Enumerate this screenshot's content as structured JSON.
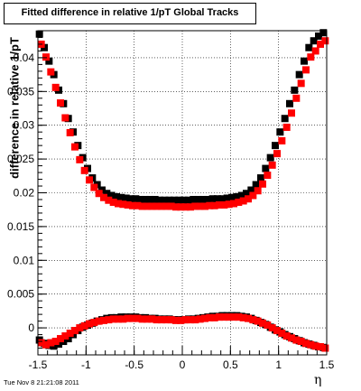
{
  "title": "Fitted difference in relative 1/pT  Global Tracks",
  "footer_timestamp": "Tue Nov  8 21:21:08 2011",
  "chart_data": {
    "type": "scatter",
    "title": "Fitted difference in relative 1/pT  Global Tracks",
    "xlabel": "η",
    "ylabel": "difference in relative 1/pT",
    "xlim": [
      -1.5,
      1.5
    ],
    "ylim": [
      -0.004,
      0.044
    ],
    "x_ticks": [
      -1.5,
      -1,
      -0.5,
      0,
      0.5,
      1,
      1.5
    ],
    "x_tick_labels": [
      "-1.5",
      "-1",
      "-0.5",
      "0",
      "0.5",
      "1",
      "1.5"
    ],
    "y_ticks": [
      0,
      0.005,
      0.01,
      0.015,
      0.02,
      0.025,
      0.03,
      0.035,
      0.04
    ],
    "y_tick_labels": [
      "0",
      "0.005",
      "0.01",
      "0.015",
      "0.02",
      "0.025",
      "0.03",
      "0.035",
      "0.04"
    ],
    "grid": true,
    "marker": "square",
    "x": [
      -1.475,
      -1.425,
      -1.375,
      -1.325,
      -1.275,
      -1.225,
      -1.175,
      -1.125,
      -1.075,
      -1.025,
      -0.975,
      -0.925,
      -0.875,
      -0.825,
      -0.775,
      -0.725,
      -0.675,
      -0.625,
      -0.575,
      -0.525,
      -0.475,
      -0.425,
      -0.375,
      -0.325,
      -0.275,
      -0.225,
      -0.175,
      -0.125,
      -0.075,
      -0.025,
      0.025,
      0.075,
      0.125,
      0.175,
      0.225,
      0.275,
      0.325,
      0.375,
      0.425,
      0.475,
      0.525,
      0.575,
      0.625,
      0.675,
      0.725,
      0.775,
      0.825,
      0.875,
      0.925,
      0.975,
      1.025,
      1.075,
      1.125,
      1.175,
      1.225,
      1.275,
      1.325,
      1.375,
      1.425,
      1.475
    ],
    "series": [
      {
        "color": "#000000",
        "upper": [
          0.0435,
          0.0415,
          0.0395,
          0.0375,
          0.0352,
          0.0332,
          0.031,
          0.029,
          0.027,
          0.0252,
          0.0236,
          0.0222,
          0.0212,
          0.0204,
          0.0199,
          0.0196,
          0.0194,
          0.0193,
          0.0192,
          0.0191,
          0.0191,
          0.019,
          0.019,
          0.019,
          0.019,
          0.0189,
          0.0189,
          0.0189,
          0.0189,
          0.0189,
          0.0189,
          0.0189,
          0.019,
          0.019,
          0.019,
          0.019,
          0.0191,
          0.0191,
          0.0191,
          0.0192,
          0.0193,
          0.0194,
          0.0196,
          0.0199,
          0.0204,
          0.0212,
          0.0222,
          0.0236,
          0.0252,
          0.027,
          0.029,
          0.031,
          0.0332,
          0.0352,
          0.0375,
          0.0395,
          0.0415,
          0.0425,
          0.0432,
          0.0437
        ],
        "lower": [
          -0.0018,
          -0.0023,
          -0.0026,
          -0.0027,
          -0.0024,
          -0.002,
          -0.0016,
          -0.001,
          -0.0004,
          0.0001,
          0.0004,
          0.0007,
          0.001,
          0.0012,
          0.0014,
          0.0015,
          0.0015,
          0.0016,
          0.0016,
          0.0016,
          0.0016,
          0.0015,
          0.0015,
          0.0014,
          0.0014,
          0.0013,
          0.0013,
          0.0013,
          0.0012,
          0.0012,
          0.0012,
          0.0013,
          0.0013,
          0.0014,
          0.0015,
          0.0016,
          0.0017,
          0.0017,
          0.0018,
          0.0018,
          0.0018,
          0.0018,
          0.0017,
          0.0016,
          0.0014,
          0.0011,
          0.0008,
          0.0005,
          0.0001,
          -0.0003,
          -0.0006,
          -0.001,
          -0.0013,
          -0.0016,
          -0.0019,
          -0.0022,
          -0.0024,
          -0.0026,
          -0.0028,
          -0.0029
        ]
      },
      {
        "color": "#ff0000",
        "upper": [
          0.042,
          0.0401,
          0.0379,
          0.0356,
          0.0333,
          0.0311,
          0.0289,
          0.0268,
          0.0249,
          0.0233,
          0.0219,
          0.0208,
          0.0199,
          0.0193,
          0.0189,
          0.0186,
          0.0184,
          0.0183,
          0.0182,
          0.0181,
          0.0181,
          0.018,
          0.018,
          0.018,
          0.018,
          0.018,
          0.018,
          0.018,
          0.0179,
          0.0179,
          0.0179,
          0.0179,
          0.018,
          0.018,
          0.018,
          0.0181,
          0.0181,
          0.0182,
          0.0182,
          0.0183,
          0.0184,
          0.0186,
          0.0188,
          0.0191,
          0.0196,
          0.0203,
          0.0213,
          0.0226,
          0.0241,
          0.0258,
          0.0277,
          0.0297,
          0.0318,
          0.034,
          0.0362,
          0.0382,
          0.0401,
          0.041,
          0.042,
          0.0425
        ],
        "lower": [
          -0.0022,
          -0.0025,
          -0.0022,
          -0.002,
          -0.0016,
          -0.0012,
          -0.0008,
          -0.0004,
          0.0,
          0.0003,
          0.0006,
          0.0008,
          0.001,
          0.0011,
          0.0012,
          0.0013,
          0.0013,
          0.0013,
          0.0014,
          0.0014,
          0.0014,
          0.0013,
          0.0013,
          0.0013,
          0.0012,
          0.0012,
          0.0012,
          0.0012,
          0.0011,
          0.0011,
          0.0012,
          0.0012,
          0.0012,
          0.0013,
          0.0014,
          0.0015,
          0.0015,
          0.0016,
          0.0016,
          0.0016,
          0.0016,
          0.0016,
          0.0015,
          0.0014,
          0.0012,
          0.001,
          0.0007,
          0.0004,
          0.0,
          -0.0004,
          -0.0008,
          -0.0012,
          -0.0015,
          -0.0018,
          -0.002,
          -0.0023,
          -0.0025,
          -0.0027,
          -0.0028,
          -0.003
        ]
      }
    ]
  }
}
